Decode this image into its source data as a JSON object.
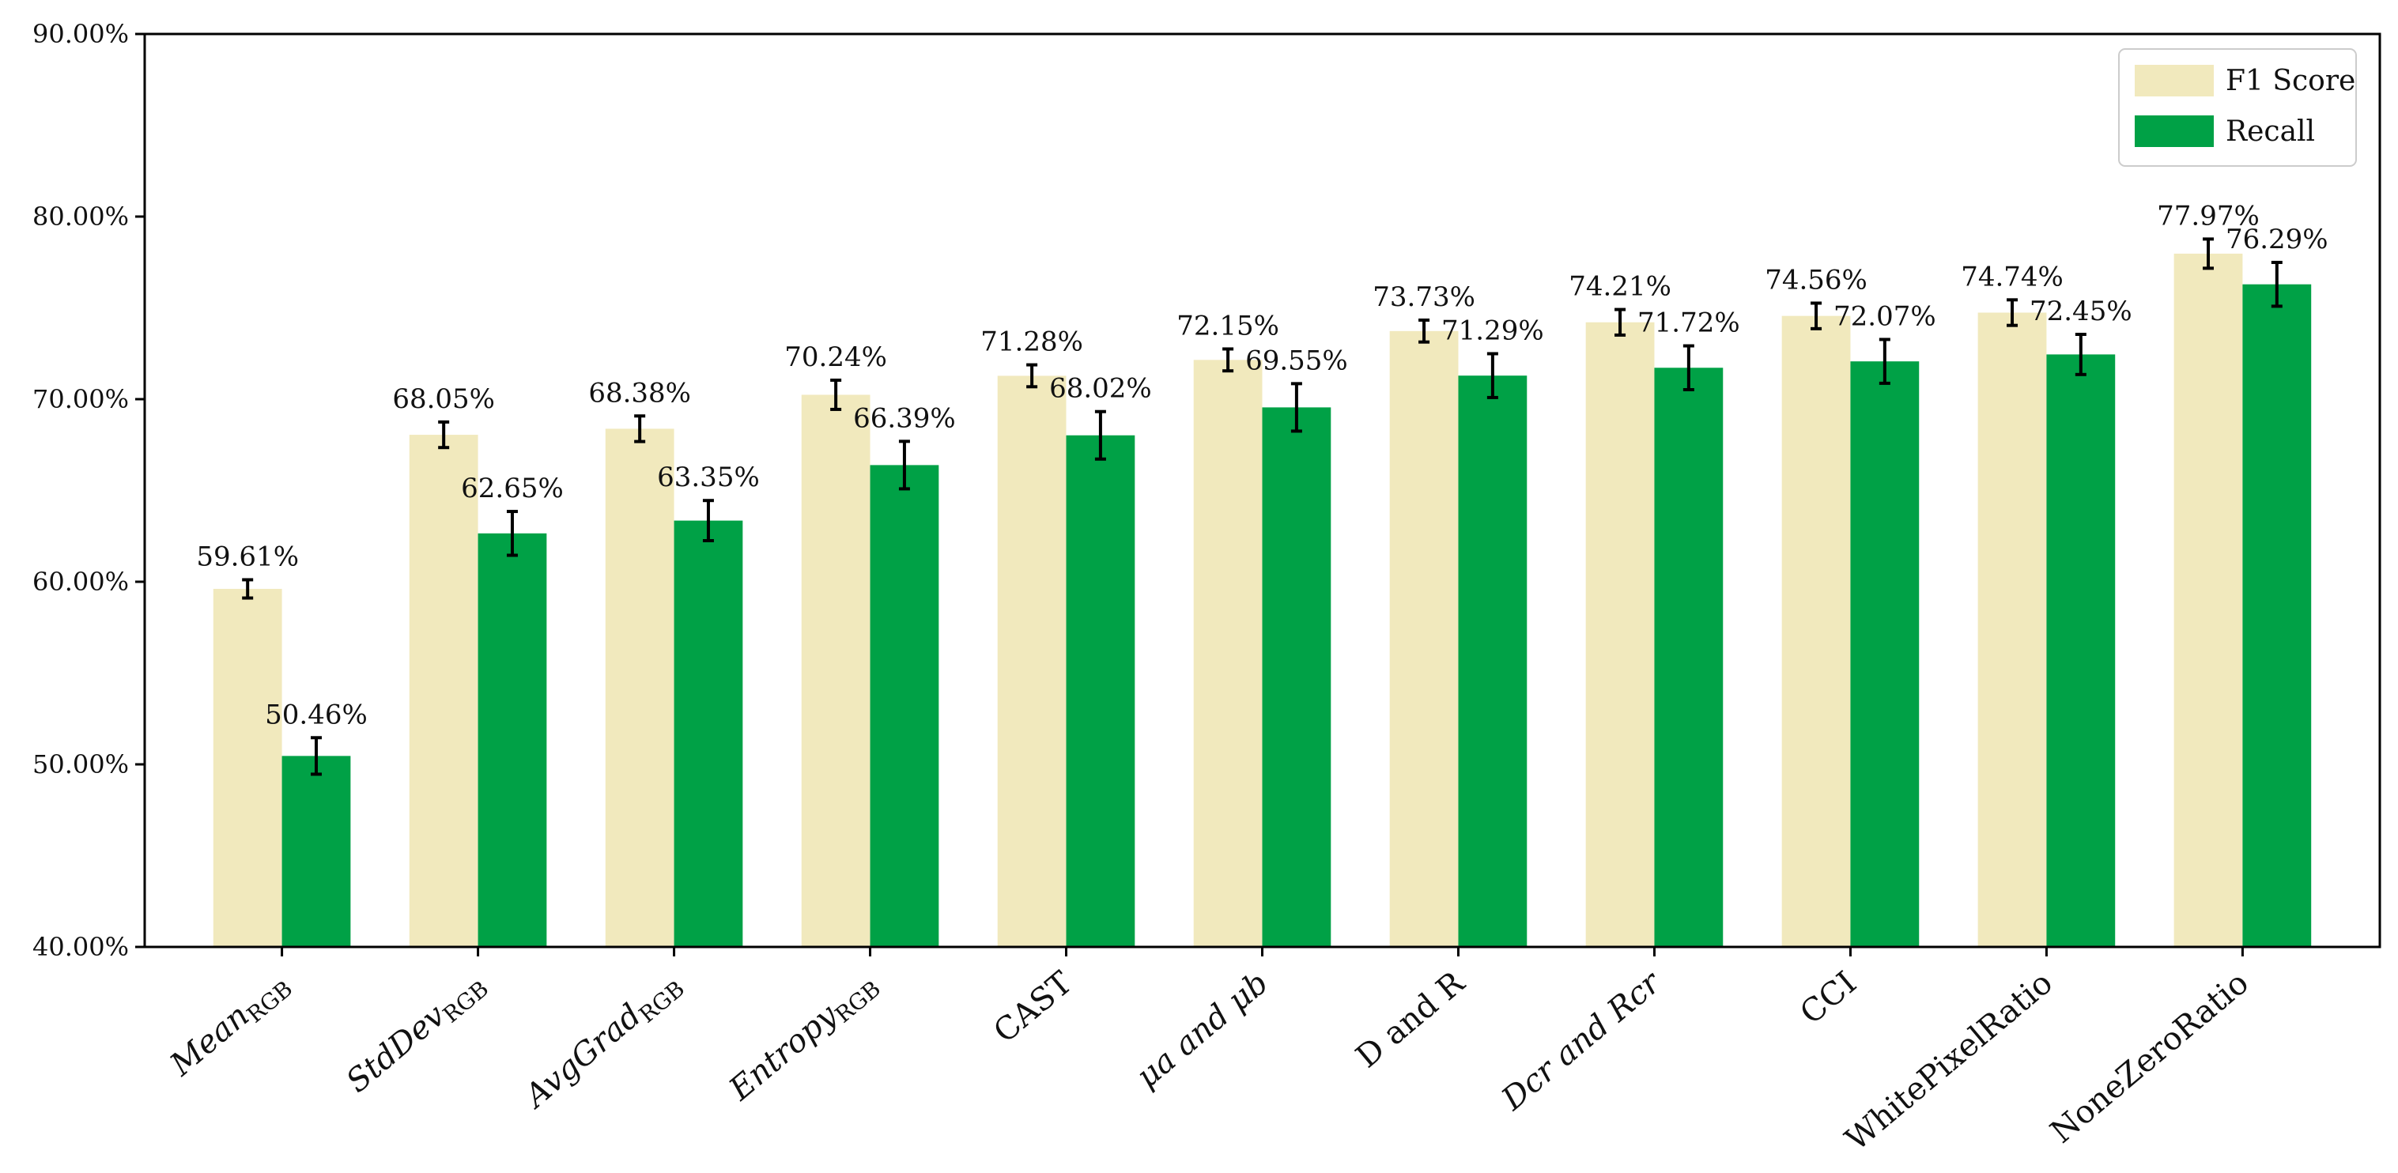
{
  "chart_data": {
    "type": "bar",
    "categories": [
      {
        "base": "Mean",
        "sub": "RGB",
        "italic": true
      },
      {
        "base": "StdDev",
        "sub": "RGB",
        "italic": true
      },
      {
        "base": "AvgGrad",
        "sub": "RGB",
        "italic": true
      },
      {
        "base": "Entropy",
        "sub": "RGB",
        "italic": true
      },
      {
        "base": "CAST",
        "sub": "",
        "italic": false
      },
      {
        "base": "μa and μb",
        "sub": "",
        "italic": true
      },
      {
        "base": "D and R",
        "sub": "",
        "italic": false
      },
      {
        "base": "Dcr and Rcr",
        "sub": "",
        "italic": true
      },
      {
        "base": "CCI",
        "sub": "",
        "italic": false
      },
      {
        "base": "WhitePixelRatio",
        "sub": "",
        "italic": false
      },
      {
        "base": "NoneZeroRatio",
        "sub": "",
        "italic": false
      }
    ],
    "series": [
      {
        "name": "F1 Score",
        "color": "#f1e9bd",
        "values": [
          59.61,
          68.05,
          68.38,
          70.24,
          71.28,
          72.15,
          73.73,
          74.21,
          74.56,
          74.74,
          77.97
        ],
        "labels": [
          "59.61%",
          "68.05%",
          "68.38%",
          "70.24%",
          "71.28%",
          "72.15%",
          "73.73%",
          "74.21%",
          "74.56%",
          "74.74%",
          "77.97%"
        ],
        "errors": [
          0.5,
          0.7,
          0.7,
          0.8,
          0.6,
          0.6,
          0.6,
          0.7,
          0.7,
          0.7,
          0.8
        ]
      },
      {
        "name": "Recall",
        "color": "#00a146",
        "values": [
          50.46,
          62.65,
          63.35,
          66.39,
          68.02,
          69.55,
          71.29,
          71.72,
          72.07,
          72.45,
          76.29
        ],
        "labels": [
          "50.46%",
          "62.65%",
          "63.35%",
          "66.39%",
          "68.02%",
          "69.55%",
          "71.29%",
          "71.72%",
          "72.07%",
          "72.45%",
          "76.29%"
        ],
        "errors": [
          1.0,
          1.2,
          1.1,
          1.3,
          1.3,
          1.3,
          1.2,
          1.2,
          1.2,
          1.1,
          1.2
        ]
      }
    ],
    "yticks": [
      "40.00%",
      "50.00%",
      "60.00%",
      "70.00%",
      "80.00%",
      "90.00%"
    ],
    "ylim": [
      40,
      90
    ],
    "xlabel": "",
    "ylabel": "",
    "legend_position": "top-right",
    "grid": false
  }
}
